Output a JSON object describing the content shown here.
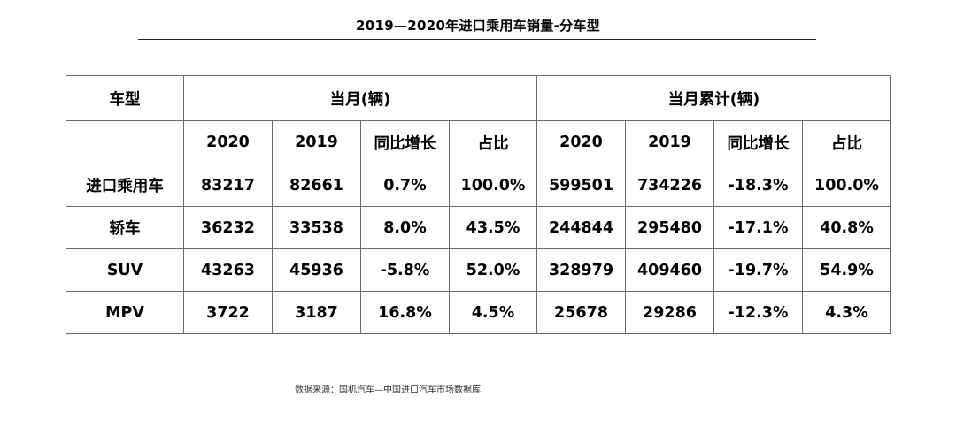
{
  "title": "2019—2020年进口乘用车销量-分车型",
  "table": {
    "type_header": "车型",
    "group_monthly": "当月(辆)",
    "group_cumulative": "当月累计(辆)",
    "subheaders": [
      "2020",
      "2019",
      "同比增长",
      "占比",
      "2020",
      "2019",
      "同比增长",
      "占比"
    ],
    "rows": [
      {
        "type": "进口乘用车",
        "cells": [
          "83217",
          "82661",
          "0.7%",
          "100.0%",
          "599501",
          "734226",
          "-18.3%",
          "100.0%"
        ]
      },
      {
        "type": "轿车",
        "cells": [
          "36232",
          "33538",
          "8.0%",
          "43.5%",
          "244844",
          "295480",
          "-17.1%",
          "40.8%"
        ]
      },
      {
        "type": "SUV",
        "cells": [
          "43263",
          "45936",
          "-5.8%",
          "52.0%",
          "328979",
          "409460",
          "-19.7%",
          "54.9%"
        ]
      },
      {
        "type": "MPV",
        "cells": [
          "3722",
          "3187",
          "16.8%",
          "4.5%",
          "25678",
          "29286",
          "-12.3%",
          "4.3%"
        ]
      }
    ]
  },
  "source": "数据来源：国机汽车—中国进口汽车市场数据库"
}
